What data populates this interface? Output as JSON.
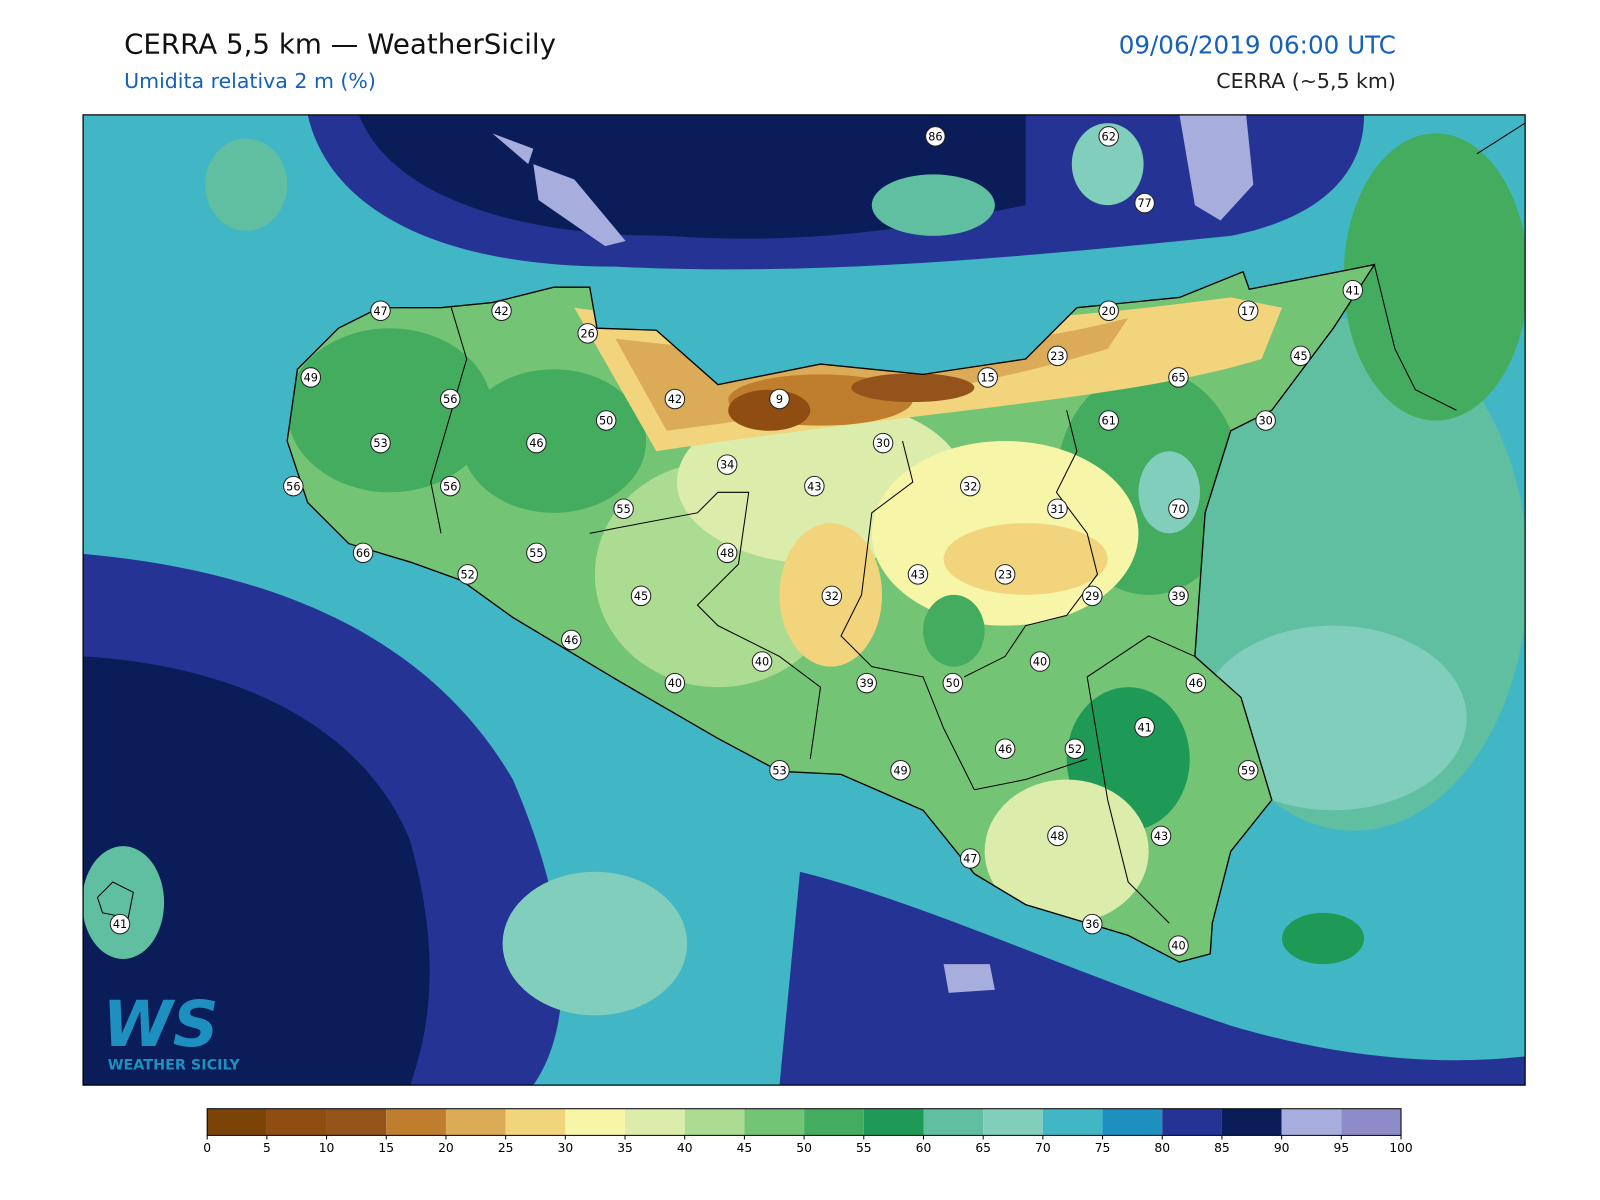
{
  "header": {
    "title": "CERRA 5,5 km — WeatherSicily",
    "subtitle": "Umidita relativa 2 m (%)",
    "date": "09/06/2019 06:00 UTC",
    "model": "CERRA (~5,5 km)"
  },
  "logo": {
    "mark": "WS",
    "text": "WEATHER SICILY"
  },
  "stations": [
    86,
    62,
    77,
    47,
    42,
    26,
    20,
    17,
    41,
    49,
    56,
    42,
    9,
    15,
    23,
    65,
    45,
    50,
    61,
    30,
    53,
    46,
    30,
    34,
    43,
    32,
    56,
    56,
    55,
    31,
    70,
    66,
    55,
    48,
    52,
    43,
    23,
    45,
    32,
    29,
    39,
    46,
    40,
    40,
    40,
    39,
    50,
    46,
    41,
    46,
    52,
    53,
    49,
    59,
    47,
    48,
    43,
    41,
    36,
    40
  ],
  "colorbar": {
    "ticks": [
      0,
      5,
      10,
      15,
      20,
      25,
      30,
      35,
      40,
      45,
      50,
      55,
      60,
      65,
      70,
      75,
      80,
      85,
      90,
      95,
      100
    ],
    "colors": [
      "#7c4309",
      "#8f4d12",
      "#93531a",
      "#bf7d2e",
      "#dcab57",
      "#f1d47c",
      "#f7f5a8",
      "#dcecaa",
      "#acdb92",
      "#74c476",
      "#43ac5e",
      "#1f9a56",
      "#5fbfa0",
      "#80cebb",
      "#41b6c4",
      "#1e90c0",
      "#253494",
      "#0a1d58",
      "#a7addc",
      "#8e8cc8"
    ]
  }
}
